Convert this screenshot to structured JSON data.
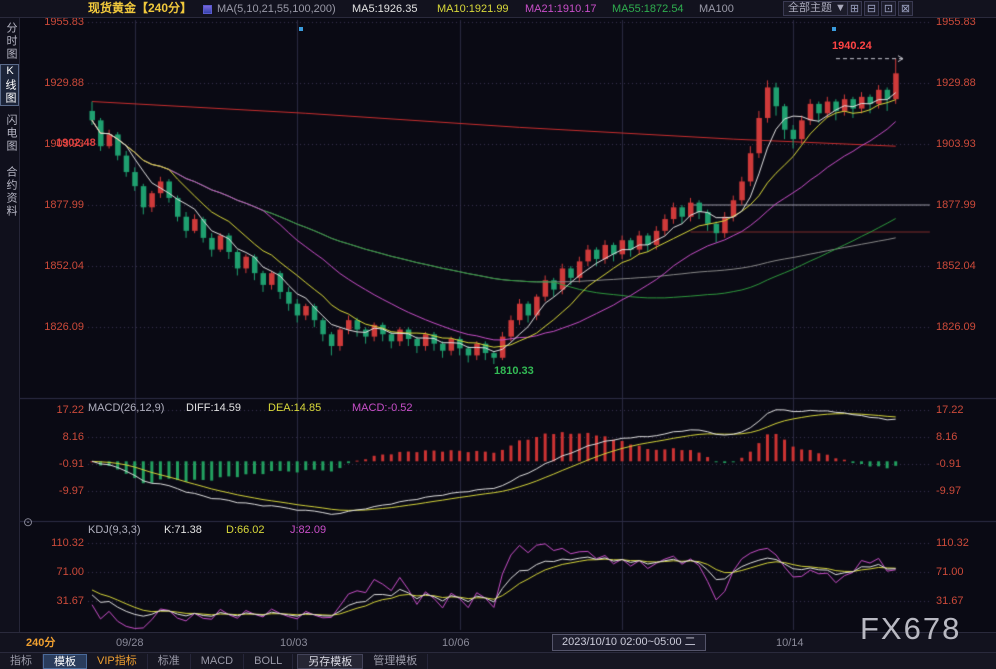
{
  "top_bar": {
    "title": "现货黄金【240分】",
    "ma_formula": "MA(5,10,21,55,100,200)",
    "ma5": "MA5:1926.35",
    "ma10": "MA10:1921.99",
    "ma21": "MA21:1910.17",
    "ma55": "MA55:1872.54",
    "ma100": "MA100",
    "theme_label": "全部主题 ▼",
    "window_button_icons": [
      "⊞",
      "⊟",
      "⊡",
      "⊠"
    ]
  },
  "sidebar": {
    "items": [
      {
        "label": "分时图",
        "active": false
      },
      {
        "label": "K线图",
        "active": true
      },
      {
        "label": "闪电图",
        "active": false
      },
      {
        "label": "合约资料",
        "active": false
      }
    ]
  },
  "price_panel": {
    "axis_left": [
      "1955.83",
      "1929.88",
      "1903.93",
      "1877.99",
      "1852.04",
      "1826.09"
    ],
    "axis_right": [
      "1955.83",
      "1929.88",
      "1903.93",
      "1877.99",
      "1852.04",
      "1826.09"
    ],
    "marker_left": "1902.48",
    "marker_high": "1940.24",
    "marker_low": "1810.33"
  },
  "macd_panel": {
    "legend": {
      "name": "MACD(26,12,9)",
      "diff": "DIFF:14.59",
      "dea": "DEA:14.85",
      "macd": "MACD:-0.52"
    },
    "axis_left": [
      "17.22",
      "8.16",
      "-0.91",
      "-9.97"
    ],
    "axis_right": [
      "17.22",
      "8.16",
      "-0.91",
      "-9.97"
    ]
  },
  "kdj_panel": {
    "legend": {
      "name": "KDJ(9,3,3)",
      "k": "K:71.38",
      "d": "D:66.02",
      "j": "J:82.09"
    },
    "axis_left": [
      "110.32",
      "71.00",
      "31.67"
    ],
    "axis_right": [
      "110.32",
      "71.00",
      "31.67"
    ]
  },
  "time_axis": {
    "interval": "240分",
    "dates": [
      "09/28",
      "10/03",
      "10/06",
      "10/14"
    ],
    "selected": "2023/10/10 02:00~05:00 二"
  },
  "bottom_tabs": {
    "items": [
      {
        "label": "指标"
      },
      {
        "label": "模板"
      },
      {
        "label": "VIP指标"
      },
      {
        "label": "标准"
      },
      {
        "label": "MACD"
      },
      {
        "label": "BOLL"
      },
      {
        "label": "另存模板"
      },
      {
        "label": "管理模板"
      }
    ]
  },
  "icons": {
    "collapse": "⊙"
  },
  "watermark": "FX678",
  "chart_data": {
    "type": "candlestick",
    "symbol": "现货黄金",
    "interval": "240分",
    "price_axis_labels": [
      1955.83,
      1929.88,
      1903.93,
      1877.99,
      1852.04,
      1826.09
    ],
    "macd_axis_labels": [
      17.22,
      8.16,
      -0.91,
      -9.97
    ],
    "kdj_axis_labels": [
      110.32,
      71.0,
      31.67
    ],
    "x_ticks": [
      {
        "index": 5,
        "label": "09/28"
      },
      {
        "index": 24,
        "label": "10/03"
      },
      {
        "index": 43,
        "label": "10/06"
      },
      {
        "index": 62,
        "label": "2023/10/10 02:00~05:00 二"
      },
      {
        "index": 82,
        "label": "10/14"
      }
    ],
    "candles": [
      [
        1918,
        1922,
        1912,
        1914
      ],
      [
        1914,
        1915,
        1901,
        1903
      ],
      [
        1903,
        1910,
        1902,
        1908
      ],
      [
        1908,
        1909,
        1897,
        1899
      ],
      [
        1899,
        1901,
        1890,
        1892
      ],
      [
        1892,
        1894,
        1884,
        1886
      ],
      [
        1886,
        1887,
        1874,
        1877
      ],
      [
        1877,
        1884,
        1875,
        1883
      ],
      [
        1883,
        1890,
        1881,
        1888
      ],
      [
        1888,
        1889,
        1879,
        1881
      ],
      [
        1881,
        1882,
        1871,
        1873
      ],
      [
        1873,
        1875,
        1864,
        1867
      ],
      [
        1867,
        1874,
        1866,
        1872
      ],
      [
        1872,
        1873,
        1862,
        1864
      ],
      [
        1864,
        1866,
        1856,
        1859
      ],
      [
        1859,
        1866,
        1858,
        1865
      ],
      [
        1865,
        1866,
        1855,
        1858
      ],
      [
        1858,
        1859,
        1848,
        1851
      ],
      [
        1851,
        1857,
        1849,
        1856
      ],
      [
        1856,
        1857,
        1846,
        1849
      ],
      [
        1849,
        1850,
        1841,
        1844
      ],
      [
        1844,
        1850,
        1842,
        1849
      ],
      [
        1849,
        1850,
        1838,
        1841
      ],
      [
        1841,
        1843,
        1833,
        1836
      ],
      [
        1836,
        1838,
        1828,
        1831
      ],
      [
        1831,
        1836,
        1829,
        1835
      ],
      [
        1835,
        1836,
        1826,
        1829
      ],
      [
        1829,
        1830,
        1820,
        1823
      ],
      [
        1823,
        1824,
        1814,
        1818
      ],
      [
        1818,
        1826,
        1816,
        1825
      ],
      [
        1825,
        1831,
        1823,
        1829
      ],
      [
        1829,
        1830,
        1822,
        1825
      ],
      [
        1825,
        1826,
        1819,
        1822
      ],
      [
        1822,
        1828,
        1820,
        1827
      ],
      [
        1827,
        1828,
        1820,
        1823
      ],
      [
        1823,
        1824,
        1817,
        1820
      ],
      [
        1820,
        1826,
        1818,
        1825
      ],
      [
        1825,
        1826,
        1818,
        1821
      ],
      [
        1821,
        1822,
        1815,
        1818
      ],
      [
        1818,
        1824,
        1816,
        1823
      ],
      [
        1823,
        1824,
        1816,
        1819
      ],
      [
        1819,
        1820,
        1813,
        1816
      ],
      [
        1816,
        1822,
        1814,
        1821
      ],
      [
        1821,
        1822,
        1814,
        1817
      ],
      [
        1817,
        1818,
        1811,
        1814
      ],
      [
        1814,
        1820,
        1812,
        1819
      ],
      [
        1819,
        1820,
        1812,
        1815
      ],
      [
        1815,
        1816,
        1810.33,
        1813
      ],
      [
        1813,
        1824,
        1812,
        1822
      ],
      [
        1822,
        1831,
        1820,
        1829
      ],
      [
        1829,
        1838,
        1827,
        1836
      ],
      [
        1836,
        1837,
        1828,
        1831
      ],
      [
        1831,
        1840,
        1829,
        1839
      ],
      [
        1839,
        1848,
        1837,
        1846
      ],
      [
        1846,
        1847,
        1839,
        1842
      ],
      [
        1842,
        1853,
        1840,
        1851
      ],
      [
        1851,
        1852,
        1844,
        1847
      ],
      [
        1847,
        1856,
        1845,
        1854
      ],
      [
        1854,
        1861,
        1852,
        1859
      ],
      [
        1859,
        1860,
        1852,
        1855
      ],
      [
        1855,
        1863,
        1853,
        1861
      ],
      [
        1861,
        1862,
        1854,
        1857
      ],
      [
        1857,
        1865,
        1855,
        1863
      ],
      [
        1863,
        1864,
        1856,
        1859
      ],
      [
        1859,
        1867,
        1857,
        1865
      ],
      [
        1865,
        1866,
        1858,
        1861
      ],
      [
        1861,
        1869,
        1859,
        1867
      ],
      [
        1867,
        1874,
        1865,
        1872
      ],
      [
        1872,
        1879,
        1870,
        1877
      ],
      [
        1877,
        1878,
        1870,
        1873
      ],
      [
        1873,
        1881,
        1871,
        1879
      ],
      [
        1879,
        1880,
        1872,
        1875
      ],
      [
        1875,
        1876,
        1867,
        1870
      ],
      [
        1870,
        1871,
        1862,
        1866
      ],
      [
        1866,
        1875,
        1864,
        1873
      ],
      [
        1873,
        1882,
        1871,
        1880
      ],
      [
        1880,
        1890,
        1878,
        1888
      ],
      [
        1888,
        1903,
        1886,
        1900
      ],
      [
        1900,
        1918,
        1898,
        1915
      ],
      [
        1915,
        1931,
        1913,
        1928
      ],
      [
        1928,
        1930,
        1916,
        1920
      ],
      [
        1920,
        1921,
        1906,
        1910
      ],
      [
        1910,
        1912,
        1902,
        1906
      ],
      [
        1906,
        1916,
        1904,
        1914
      ],
      [
        1914,
        1923,
        1912,
        1921
      ],
      [
        1921,
        1922,
        1913,
        1917
      ],
      [
        1917,
        1924,
        1915,
        1922
      ],
      [
        1922,
        1923,
        1914,
        1918
      ],
      [
        1918,
        1925,
        1916,
        1923
      ],
      [
        1923,
        1924,
        1915,
        1919
      ],
      [
        1919,
        1926,
        1917,
        1924
      ],
      [
        1924,
        1925,
        1917,
        1921
      ],
      [
        1921,
        1929,
        1919,
        1927
      ],
      [
        1927,
        1928,
        1918,
        1923
      ],
      [
        1923,
        1940.24,
        1921,
        1934
      ]
    ],
    "ma_periods": [
      {
        "period": 100,
        "color": "#8a8a8a"
      },
      {
        "period": 55,
        "color": "#2f9b3e"
      },
      {
        "period": 21,
        "color": "#c94fc9"
      },
      {
        "period": 10,
        "color": "#d9d93a"
      },
      {
        "period": 5,
        "color": "#e2e2e2"
      }
    ],
    "overlays": [
      {
        "name": "ma200",
        "color": "#cc2f2f",
        "points": [
          [
            0,
            1922
          ],
          [
            25,
            1917
          ],
          [
            50,
            1911
          ],
          [
            75,
            1906
          ],
          [
            94,
            1903
          ]
        ]
      },
      {
        "name": "level-gray",
        "color": "#9a9aa5",
        "price": 1877.99,
        "from": 70,
        "to": 98
      },
      {
        "name": "level-dark-red",
        "color": "#7e2a2a",
        "price": 1866.5,
        "from": 70,
        "to": 98
      }
    ],
    "markers": {
      "high": {
        "index": 94,
        "price": 1940.24
      },
      "low": {
        "index": 47,
        "price": 1810.33
      },
      "left": {
        "index": 1,
        "price": 1902.48
      }
    },
    "event_marker_indices": [
      24,
      87
    ],
    "colors": {
      "candle_up": "#cf3a3a",
      "candle_down": "#1fa070",
      "grid": "#2a2a40",
      "grid_dot": "#3a3050",
      "separator": "#2e2e46",
      "hist_up": "#cc3333",
      "hist_down": "#22a060",
      "diff": "#e0e0e0",
      "dea": "#d6d63a",
      "k": "#e0e0e0",
      "d": "#d6d63a",
      "j": "#c94fc9",
      "high_pointer": "#c8c8d0"
    }
  }
}
